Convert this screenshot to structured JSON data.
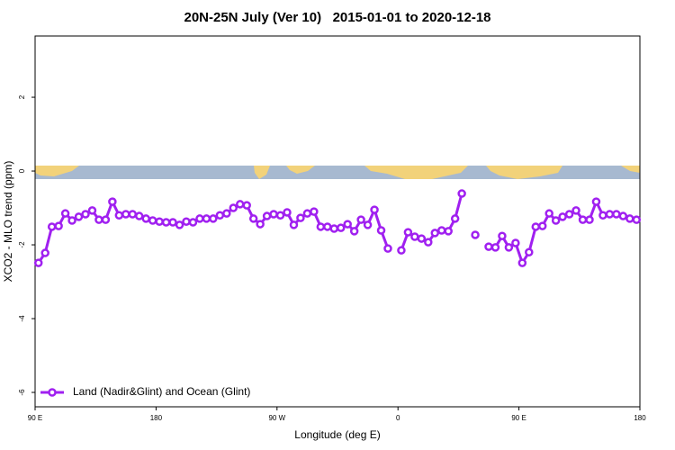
{
  "chart_data": {
    "type": "line",
    "title": "20N-25N July (Ver 10)   2015-01-01 to 2020-12-18",
    "x_label": "Longitude (deg E)",
    "y_label": "XCO2 - MLO trend (ppm)",
    "xlim": [
      90,
      540
    ],
    "ylim": [
      -6.39,
      3.66
    ],
    "xticks": [
      {
        "value": 90,
        "label": "90 E"
      },
      180,
      {
        "value": 270,
        "label": "90 W"
      },
      {
        "value": 360,
        "label": "0"
      },
      {
        "value": 450,
        "label": "90 E"
      },
      {
        "value": 540,
        "label": "180"
      }
    ],
    "yticks": [
      2,
      0,
      -2,
      -4,
      -6
    ],
    "legend": "bottom-left",
    "x": [
      92.5,
      97.5,
      102.5,
      107.5,
      112.5,
      117.5,
      122.5,
      127.5,
      132.5,
      137.5,
      142.5,
      147.5,
      152.5,
      157.5,
      162.5,
      167.5,
      172.5,
      177.5,
      182.5,
      187.5,
      192.5,
      197.5,
      202.5,
      207.5,
      212.5,
      217.5,
      222.5,
      227.5,
      232.5,
      237.5,
      242.5,
      247.5,
      252.5,
      257.5,
      262.5,
      267.5,
      272.5,
      277.5,
      282.5,
      287.5,
      292.5,
      297.5,
      302.5,
      307.5,
      312.5,
      317.5,
      322.5,
      327.5,
      332.5,
      337.5,
      342.5,
      347.5,
      352.5,
      357.5,
      362.5,
      367.5,
      372.5,
      377.5,
      382.5,
      387.5,
      392.5,
      397.5,
      402.5,
      407.5,
      412.5,
      417.5,
      422.5,
      427.5,
      432.5,
      437.5,
      442.5,
      447.5,
      452.5,
      457.5,
      462.5,
      467.5,
      472.5,
      477.5,
      482.5,
      487.5,
      492.5,
      497.5,
      502.5,
      507.5,
      512.5,
      517.5,
      522.5,
      527.5,
      532.5,
      537.5
    ],
    "series": [
      {
        "name": "Land (Nadir&Glint) and Ocean (Glint)",
        "color": "#a020f0",
        "values": [
          -2.49,
          -2.22,
          -1.51,
          -1.49,
          -1.15,
          -1.34,
          -1.24,
          -1.17,
          -1.07,
          -1.32,
          -1.32,
          -0.83,
          -1.2,
          -1.17,
          -1.17,
          -1.22,
          -1.29,
          -1.34,
          -1.37,
          -1.39,
          -1.39,
          -1.46,
          -1.37,
          -1.39,
          -1.29,
          -1.29,
          -1.29,
          -1.2,
          -1.15,
          -1.0,
          -0.9,
          -0.93,
          -1.29,
          -1.44,
          -1.22,
          -1.17,
          -1.2,
          -1.12,
          -1.46,
          -1.27,
          -1.15,
          -1.1,
          -1.51,
          -1.51,
          -1.56,
          -1.54,
          -1.44,
          -1.63,
          -1.32,
          -1.46,
          -1.05,
          -1.61,
          -2.1,
          null,
          -2.15,
          -1.66,
          -1.78,
          -1.83,
          -1.93,
          -1.68,
          -1.61,
          -1.63,
          -1.29,
          -0.61,
          null,
          -1.73,
          null,
          -2.05,
          -2.07,
          -1.76,
          -2.07,
          -1.95,
          -2.49,
          -2.2,
          -1.51,
          -1.49,
          -1.15,
          -1.34,
          -1.24,
          -1.17,
          -1.07,
          -1.32,
          -1.32,
          -0.83,
          -1.2,
          -1.17,
          -1.17,
          -1.22,
          -1.29,
          -1.32
        ]
      }
    ]
  }
}
